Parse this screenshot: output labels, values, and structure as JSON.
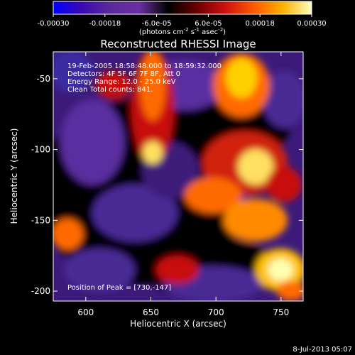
{
  "colorbar": {
    "tick_labels": [
      "-0.00030",
      "-0.00018",
      "-6.0e-05",
      "6.0e-05",
      "0.00018",
      "0.00030"
    ],
    "tick_values": [
      -0.0003,
      -0.00018,
      -6e-05,
      6e-05,
      0.00018,
      0.0003
    ],
    "range": [
      -0.0003,
      0.0003
    ],
    "units_main": "(photons cm",
    "units_exp1": "-2",
    "units_mid": " s",
    "units_exp2": "-1",
    "units_end": " asec",
    "units_exp3": "-2",
    "units_close": ")",
    "colormap": [
      "#0000ff",
      "#3a0ab0",
      "#5a2a9a",
      "#6a2fa0",
      "#000000",
      "#6a0000",
      "#d01010",
      "#ff5a00",
      "#ffb000",
      "#ffffc0"
    ]
  },
  "chart_data": {
    "type": "heatmap",
    "title": "Reconstructed RHESSI Image",
    "xlabel": "Heliocentric X (arcsec)",
    "ylabel": "Heliocentric Y (arcsec)",
    "xlim": [
      575,
      767
    ],
    "ylim": [
      -207,
      -31
    ],
    "x_ticks": [
      600,
      650,
      700,
      750
    ],
    "y_ticks": [
      -50,
      -100,
      -150,
      -200
    ],
    "info_lines": [
      "19-Feb-2005 18:58:48.000 to 18:59:32.000",
      "Detectors: 4F 5F 6F 7F 8F, Att 0",
      "Energy Range: 12.0 - 25.0 keV",
      "Clean    Total counts: 841."
    ],
    "peak_label": "Position of Peak = [730,-147]",
    "peak": [
      730,
      -147
    ],
    "footer_date": "8-Jul-2013 05:07",
    "grid": false
  }
}
